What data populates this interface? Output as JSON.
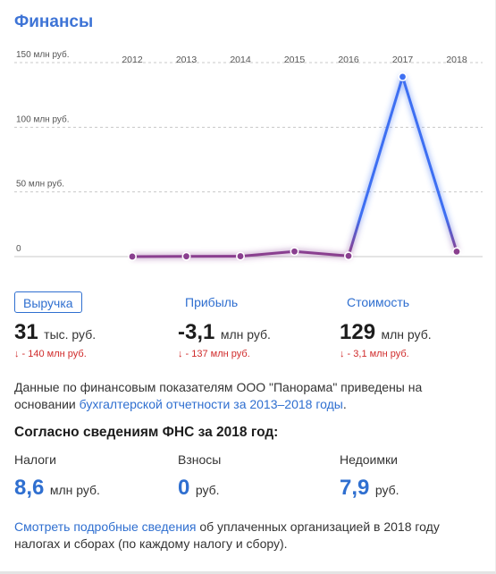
{
  "title": "Финансы",
  "chart_data": {
    "type": "line",
    "x": [
      "2012",
      "2013",
      "2014",
      "2015",
      "2016",
      "2017",
      "2018"
    ],
    "series": [
      {
        "values": [
          0.031,
          0.2,
          0.3,
          4.0,
          0.5,
          139,
          3.9
        ]
      }
    ],
    "y_ticks": [
      {
        "value": 150,
        "label": "150 млн руб."
      },
      {
        "value": 100,
        "label": "100 млн руб."
      },
      {
        "value": 50,
        "label": "50 млн руб."
      },
      {
        "value": 0,
        "label": "0"
      }
    ],
    "ylim": [
      0,
      150
    ],
    "grid": true,
    "colors": {
      "high": "#3d6ff2",
      "low": "#8a3f8f",
      "grid": "#c8c8c8",
      "label": "#555555"
    }
  },
  "metrics": [
    {
      "label": "Выручка",
      "value": "31",
      "unit": "тыс. руб.",
      "delta": "↓ - 140 млн руб."
    },
    {
      "label": "Прибыль",
      "value": "-3,1",
      "unit": "млн руб.",
      "delta": "↓ - 137 млн руб."
    },
    {
      "label": "Стоимость",
      "value": "129",
      "unit": "млн руб.",
      "delta": "↓ - 3,1 млн руб."
    }
  ],
  "description": {
    "text_before": "Данные по финансовым показателям ООО \"Панорама\" приведены на основании ",
    "link": "бухгалтерской отчетности за 2013–2018 годы",
    "text_after": "."
  },
  "fns": {
    "title": "Согласно сведениям ФНС за 2018 год:",
    "items": [
      {
        "label": "Налоги",
        "value": "8,6",
        "unit": "млн руб."
      },
      {
        "label": "Взносы",
        "value": "0",
        "unit": "руб."
      },
      {
        "label": "Недоимки",
        "value": "7,9",
        "unit": "руб."
      }
    ]
  },
  "footer": {
    "link": "Смотреть подробные сведения",
    "text": " об уплаченных организацией в 2018 году налогах и сборах (по каждому налогу и сбору)."
  }
}
